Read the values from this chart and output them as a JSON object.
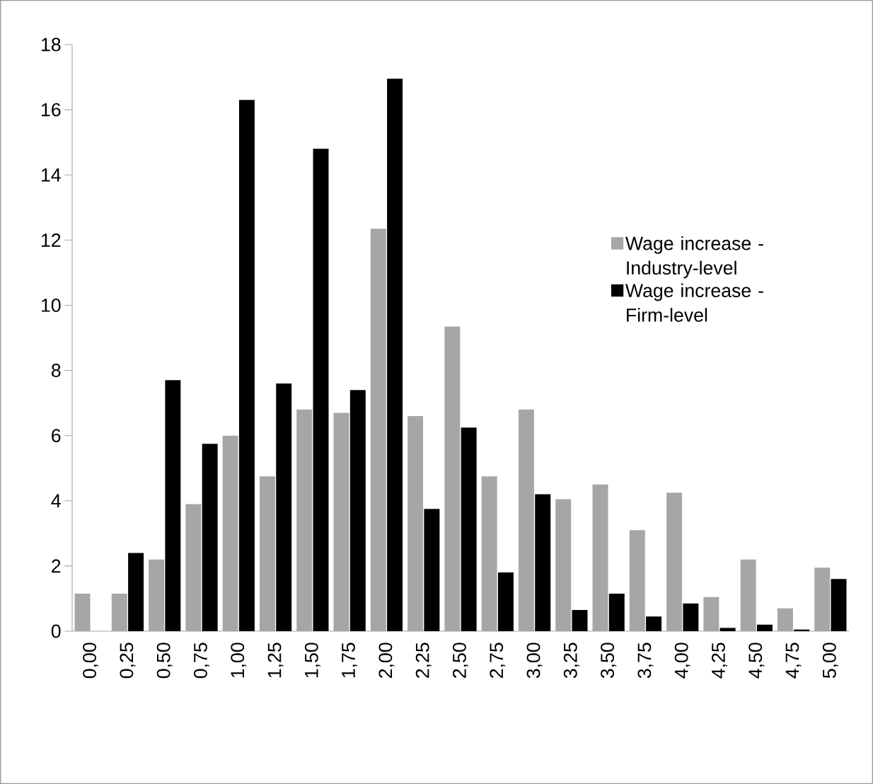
{
  "chart_data": {
    "type": "bar",
    "categories": [
      "0,00",
      "0,25",
      "0,50",
      "0,75",
      "1,00",
      "1,25",
      "1,50",
      "1,75",
      "2,00",
      "2,25",
      "2,50",
      "2,75",
      "3,00",
      "3,25",
      "3,50",
      "3,75",
      "4,00",
      "4,25",
      "4,50",
      "4,75",
      "5,00"
    ],
    "series": [
      {
        "name": "Wage increase - Industry-level",
        "color": "#a6a6a6",
        "values": [
          1.15,
          1.15,
          2.2,
          3.9,
          6.0,
          4.75,
          6.8,
          6.7,
          12.35,
          6.6,
          9.35,
          4.75,
          6.8,
          4.05,
          4.5,
          3.1,
          4.25,
          1.05,
          2.2,
          0.7,
          1.95
        ]
      },
      {
        "name": "Wage increase - Firm-level",
        "color": "#000000",
        "values": [
          0,
          2.4,
          7.7,
          5.75,
          16.3,
          7.6,
          14.8,
          7.4,
          16.95,
          3.75,
          6.25,
          1.8,
          4.2,
          0.65,
          1.15,
          0.45,
          0.85,
          0.1,
          0.2,
          0.05,
          1.6
        ]
      }
    ],
    "ylim": [
      0,
      18
    ],
    "yticks": [
      0,
      2,
      4,
      6,
      8,
      10,
      12,
      14,
      16,
      18
    ],
    "legend": "right"
  }
}
